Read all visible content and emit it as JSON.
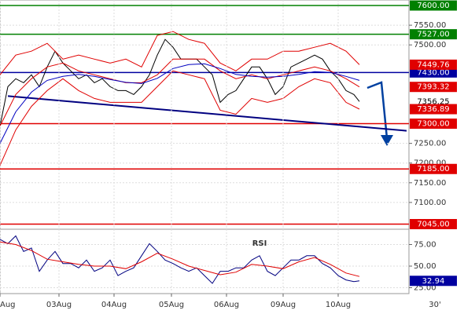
{
  "chart_data": [
    {
      "type": "line",
      "xlim": [
        0,
        520
      ],
      "ylim": [
        7040,
        7610
      ],
      "grid": true,
      "yticks": [
        {
          "value": 7550,
          "label": "7550.00"
        },
        {
          "value": 7500,
          "label": "7500.00"
        },
        {
          "value": 7250,
          "label": "7250.00"
        },
        {
          "value": 7200,
          "label": "7200.00"
        },
        {
          "value": 7150,
          "label": "7150.00"
        },
        {
          "value": 7100,
          "label": "7100.00"
        }
      ],
      "series": [
        {
          "color": "#000000",
          "x": [
            0,
            10,
            20,
            30,
            40,
            50,
            60,
            70,
            80,
            90,
            100,
            110,
            120,
            130,
            140,
            150,
            160,
            170,
            180,
            190,
            200,
            210,
            220,
            230,
            240,
            250,
            260,
            270,
            280,
            290,
            300,
            310,
            320,
            330,
            340,
            350,
            360,
            370,
            380,
            390,
            400,
            410,
            420,
            430,
            440,
            450,
            457
          ],
          "values": [
            7294,
            7394,
            7414,
            7404,
            7424,
            7394,
            7444,
            7484,
            7454,
            7434,
            7414,
            7424,
            7404,
            7414,
            7394,
            7384,
            7384,
            7374,
            7394,
            7424,
            7474,
            7514,
            7494,
            7464,
            7464,
            7464,
            7444,
            7424,
            7354,
            7374,
            7384,
            7414,
            7444,
            7444,
            7414,
            7374,
            7394,
            7444,
            7454,
            7464,
            7474,
            7464,
            7434,
            7414,
            7384,
            7374,
            7356.25
          ]
        },
        {
          "color": "#e00000",
          "x": [
            0,
            20,
            40,
            60,
            80,
            100,
            120,
            140,
            160,
            180,
            200,
            220,
            240,
            260,
            280,
            300,
            320,
            340,
            360,
            380,
            400,
            420,
            440,
            457
          ],
          "values": [
            7424,
            7474,
            7484,
            7504,
            7464,
            7474,
            7464,
            7454,
            7464,
            7444,
            7524,
            7534,
            7514,
            7504,
            7454,
            7434,
            7464,
            7464,
            7484,
            7484,
            7494,
            7504,
            7484,
            7449.76
          ]
        },
        {
          "color": "#e00000",
          "x": [
            0,
            20,
            40,
            60,
            80,
            100,
            120,
            140,
            160,
            180,
            200,
            220,
            240,
            260,
            280,
            300,
            320,
            340,
            360,
            380,
            400,
            420,
            440,
            457
          ],
          "values": [
            7294,
            7374,
            7414,
            7444,
            7454,
            7434,
            7424,
            7414,
            7404,
            7404,
            7424,
            7464,
            7464,
            7464,
            7434,
            7414,
            7424,
            7414,
            7424,
            7434,
            7444,
            7434,
            7414,
            7393.32
          ]
        },
        {
          "color": "#e00000",
          "x": [
            0,
            20,
            40,
            60,
            80,
            100,
            120,
            140,
            160,
            180,
            200,
            220,
            240,
            260,
            280,
            300,
            320,
            340,
            360,
            380,
            400,
            420,
            440,
            457
          ],
          "values": [
            7194,
            7284,
            7344,
            7384,
            7414,
            7384,
            7364,
            7354,
            7354,
            7354,
            7394,
            7434,
            7424,
            7414,
            7334,
            7324,
            7364,
            7354,
            7364,
            7394,
            7414,
            7404,
            7354,
            7336.89
          ]
        },
        {
          "color": "#0000c0",
          "x": [
            0,
            20,
            40,
            60,
            80,
            100,
            120,
            140,
            160,
            180,
            200,
            220,
            240,
            260,
            280,
            300,
            320,
            340,
            360,
            380,
            400,
            420,
            440,
            457
          ],
          "values": [
            7250,
            7330,
            7380,
            7410,
            7420,
            7425,
            7420,
            7412,
            7405,
            7402,
            7415,
            7440,
            7450,
            7452,
            7440,
            7425,
            7420,
            7418,
            7420,
            7425,
            7432,
            7430,
            7420,
            7410
          ]
        }
      ],
      "trendline": {
        "color": "#000080",
        "x": [
          10,
          517
        ],
        "values": [
          7370,
          7282
        ]
      },
      "levels": [
        {
          "value": 7600,
          "label": "7600.00",
          "color": "#008000"
        },
        {
          "value": 7527,
          "label": "7527.00",
          "color": "#008000"
        },
        {
          "value": 7430,
          "label": "7430.00",
          "color": "#0000a0"
        },
        {
          "value": 7300,
          "label": "7300.00",
          "color": "#e00000"
        },
        {
          "value": 7185,
          "label": "7185.00",
          "color": "#e00000"
        },
        {
          "value": 7045,
          "label": "7045.00",
          "color": "#e00000"
        }
      ],
      "price_labels": [
        {
          "value": 7449.76,
          "label": "7449.76",
          "color": "#e00000"
        },
        {
          "value": 7393.32,
          "label": "7393.32",
          "color": "#e00000"
        },
        {
          "value": 7356.25,
          "label": "7356.25",
          "color": "#ffffff"
        },
        {
          "value": 7336.89,
          "label": "7336.89",
          "color": "#e00000"
        }
      ]
    },
    {
      "type": "line",
      "title": "RSI",
      "xlim": [
        0,
        520
      ],
      "ylim": [
        20,
        90
      ],
      "grid": true,
      "yticks": [
        {
          "value": 75,
          "label": "75.00"
        },
        {
          "value": 50,
          "label": "50.00"
        },
        {
          "value": 25,
          "label": "25.00"
        }
      ],
      "xticks": [
        {
          "value": 0,
          "label": "Aug"
        },
        {
          "value": 75,
          "label": "03Aug"
        },
        {
          "value": 145,
          "label": "04Aug"
        },
        {
          "value": 218,
          "label": "05Aug"
        },
        {
          "value": 288,
          "label": "06Aug"
        },
        {
          "value": 360,
          "label": "09Aug"
        },
        {
          "value": 430,
          "label": "10Aug"
        }
      ],
      "interval": "30'",
      "series": [
        {
          "color": "#000080",
          "x": [
            0,
            10,
            20,
            30,
            40,
            50,
            60,
            70,
            80,
            90,
            100,
            110,
            120,
            130,
            140,
            150,
            160,
            170,
            180,
            190,
            200,
            210,
            220,
            230,
            240,
            250,
            260,
            270,
            280,
            290,
            300,
            310,
            320,
            330,
            340,
            350,
            360,
            370,
            380,
            390,
            400,
            410,
            420,
            430,
            440,
            450,
            457
          ],
          "values": [
            81,
            76,
            85,
            67,
            71,
            44,
            57,
            67,
            53,
            53,
            48,
            57,
            44,
            48,
            57,
            39,
            44,
            48,
            62,
            76,
            67,
            57,
            53,
            48,
            44,
            48,
            39,
            30,
            44,
            44,
            48,
            48,
            57,
            62,
            44,
            39,
            48,
            57,
            57,
            62,
            62,
            53,
            48,
            39,
            34,
            32,
            32.94
          ]
        },
        {
          "color": "#e00000",
          "x": [
            0,
            20,
            40,
            60,
            80,
            100,
            120,
            140,
            160,
            180,
            200,
            220,
            240,
            260,
            280,
            300,
            320,
            340,
            360,
            380,
            400,
            420,
            440,
            457
          ],
          "values": [
            78,
            75,
            68,
            58,
            55,
            52,
            50,
            50,
            47,
            55,
            65,
            58,
            50,
            45,
            40,
            43,
            52,
            50,
            47,
            55,
            60,
            52,
            42,
            38
          ]
        }
      ],
      "price_labels": [
        {
          "value": 32.94,
          "label": "32.94",
          "color": "#0000a0"
        }
      ]
    }
  ]
}
